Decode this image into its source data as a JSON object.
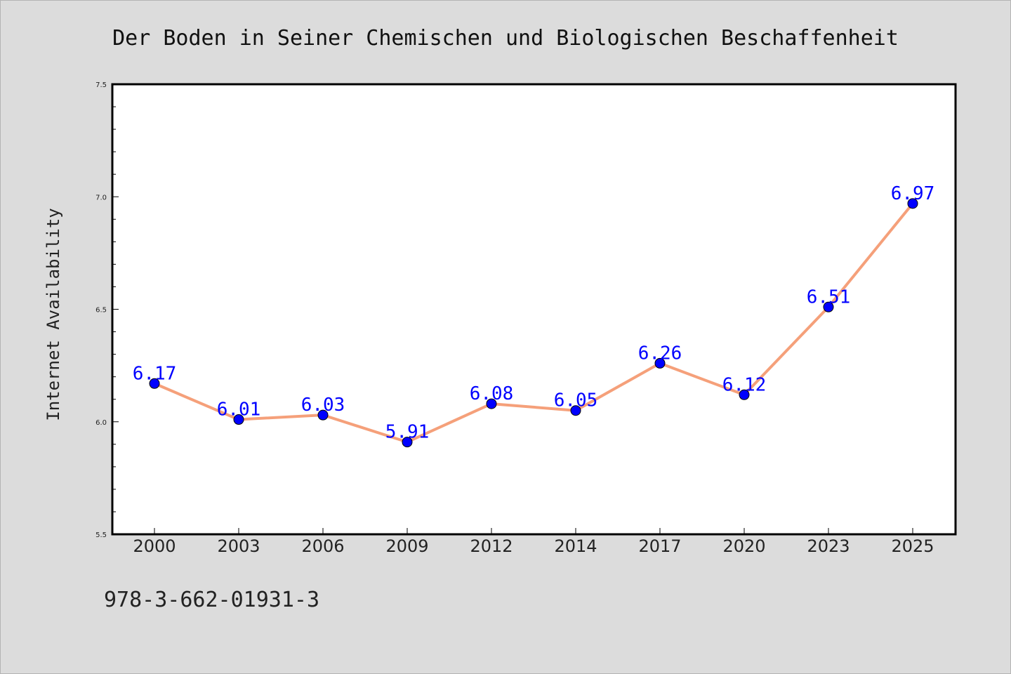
{
  "chart_data": {
    "type": "line",
    "title": "Der Boden in Seiner Chemischen und Biologischen Beschaffenheit",
    "xlabel": "",
    "ylabel": "Internet Availability",
    "categories": [
      "2000",
      "2003",
      "2006",
      "2009",
      "2012",
      "2014",
      "2017",
      "2020",
      "2023",
      "2025"
    ],
    "series": [
      {
        "values": [
          6.17,
          6.01,
          6.03,
          5.91,
          6.08,
          6.05,
          6.26,
          6.12,
          6.51,
          6.97
        ],
        "data_labels": [
          "6.17",
          "6.01",
          "6.03",
          "5.91",
          "6.08",
          "6.05",
          "6.26",
          "6.12",
          "6.51",
          "6.97"
        ]
      }
    ],
    "ylim": [
      5.5,
      7.5
    ],
    "y_ticks": [
      "5.5",
      "6.0",
      "6.5",
      "7.0",
      "7.5"
    ],
    "grid": false,
    "colors": {
      "line": "#f5a07a",
      "marker": "#0000ff",
      "data_label": "#0000ff",
      "plot_background": "#ffffff",
      "figure_background": "#dcdcdc"
    }
  },
  "footer": {
    "isbn": "978-3-662-01931-3"
  }
}
